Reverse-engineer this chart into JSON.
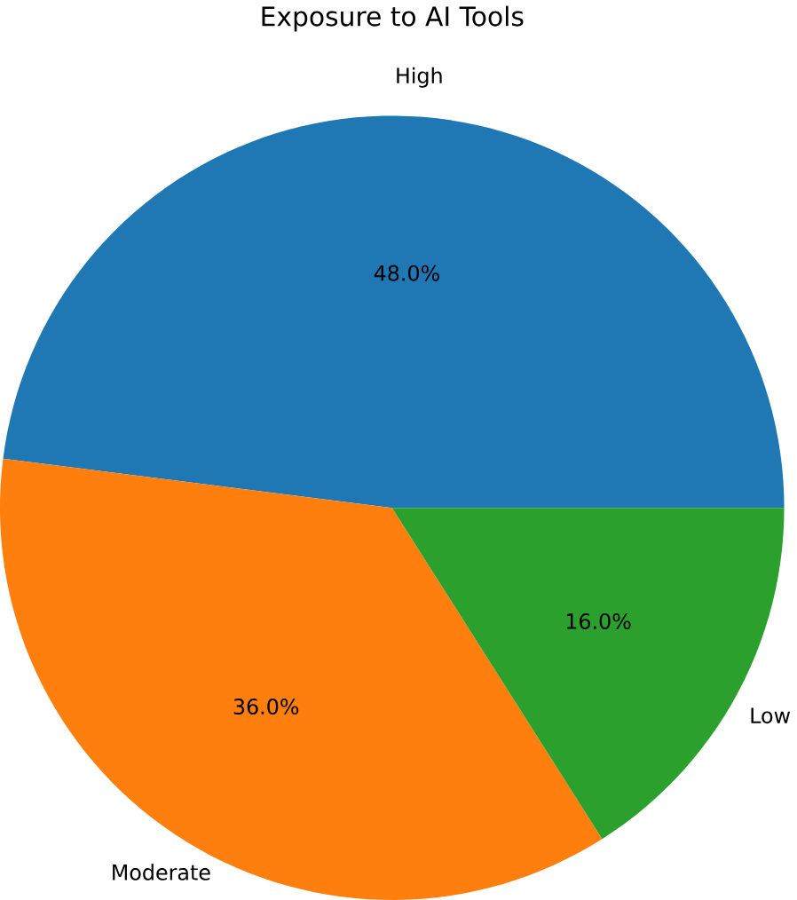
{
  "chart_data": {
    "type": "pie",
    "title": "Exposure to AI Tools",
    "categories": [
      "High",
      "Moderate",
      "Low"
    ],
    "values": [
      48,
      36,
      16
    ],
    "colors": [
      "#1f77b4",
      "#ff7f0e",
      "#2ca02c"
    ],
    "value_labels": [
      "48.0%",
      "36.0%",
      "16.0%"
    ]
  }
}
